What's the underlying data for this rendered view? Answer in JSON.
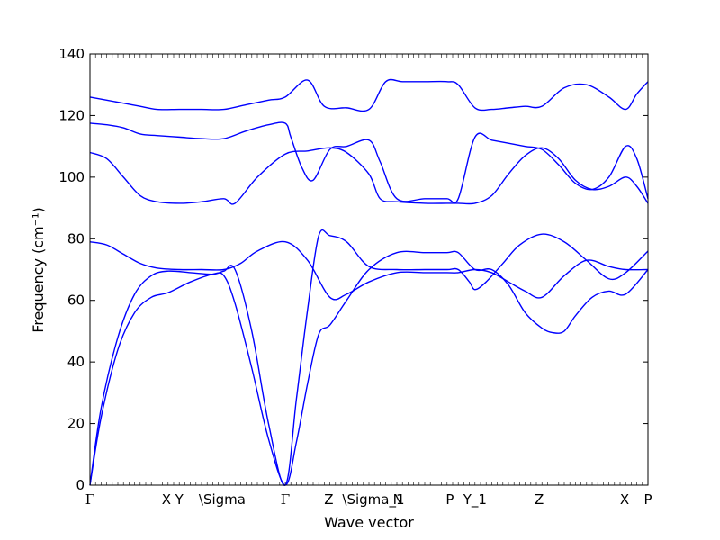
{
  "chart_data": {
    "type": "line",
    "title": "",
    "xlabel": "Wave vector",
    "ylabel": "Frequency (cm⁻¹)",
    "ylim": [
      0,
      140
    ],
    "yticks": [
      0,
      20,
      40,
      60,
      80,
      100,
      120,
      140
    ],
    "grid": false,
    "legend": "none",
    "color": "#0000ff",
    "xlim": [
      0,
      1
    ],
    "high_symmetry_points": [
      {
        "label": "Γ",
        "x": 0.0
      },
      {
        "label": "X",
        "x": 0.137
      },
      {
        "label": "Y",
        "x": 0.16
      },
      {
        "label": "\\Sigma",
        "x": 0.237
      },
      {
        "label": "Γ",
        "x": 0.35
      },
      {
        "label": "Z",
        "x": 0.428
      },
      {
        "label": "\\Sigma_1",
        "x": 0.508
      },
      {
        "label": "N",
        "x": 0.552
      },
      {
        "label": "P",
        "x": 0.645
      },
      {
        "label": "Y_1",
        "x": 0.69
      },
      {
        "label": "Z",
        "x": 0.805
      },
      {
        "label": "X",
        "x": 0.958
      },
      {
        "label": "P",
        "x": 1.0
      }
    ],
    "series": [
      {
        "x": [
          0,
          0.03,
          0.06,
          0.09,
          0.12,
          0.16,
          0.2,
          0.24,
          0.28,
          0.32,
          0.35,
          0.39,
          0.42,
          0.46,
          0.5,
          0.53,
          0.56,
          0.6,
          0.64,
          0.66,
          0.69,
          0.72,
          0.75,
          0.78,
          0.81,
          0.85,
          0.89,
          0.93,
          0.96,
          0.98,
          1.0
        ],
        "y": [
          126,
          125,
          124,
          123,
          122,
          122,
          122,
          122,
          123.5,
          125,
          126,
          131.5,
          123,
          122.5,
          122,
          131,
          131,
          131,
          131,
          130,
          122.5,
          122,
          122.5,
          123,
          123,
          129,
          130,
          126,
          122,
          127,
          131
        ]
      },
      {
        "x": [
          0,
          0.03,
          0.06,
          0.09,
          0.12,
          0.16,
          0.2,
          0.24,
          0.28,
          0.32,
          0.35,
          0.36,
          0.38,
          0.4,
          0.43,
          0.46,
          0.5,
          0.52,
          0.55,
          0.6,
          0.64,
          0.66,
          0.69,
          0.72,
          0.75,
          0.78,
          0.81,
          0.84,
          0.87,
          0.9,
          0.93,
          0.96,
          0.98,
          1.0
        ],
        "y": [
          117.5,
          117,
          116,
          114,
          113.5,
          113,
          112.5,
          112.5,
          115,
          117,
          117.5,
          113,
          103,
          99,
          109,
          110,
          112,
          105,
          93,
          93,
          93,
          93,
          113,
          112,
          111,
          110,
          109,
          104,
          98,
          96,
          100,
          110,
          106,
          93
        ]
      },
      {
        "x": [
          0,
          0.03,
          0.06,
          0.09,
          0.12,
          0.16,
          0.2,
          0.24,
          0.26,
          0.3,
          0.35,
          0.39,
          0.43,
          0.46,
          0.5,
          0.52,
          0.55,
          0.6,
          0.64,
          0.66,
          0.69,
          0.72,
          0.75,
          0.78,
          0.81,
          0.84,
          0.87,
          0.9,
          0.93,
          0.96,
          0.98,
          1.0
        ],
        "y": [
          108,
          106,
          100,
          94,
          92,
          91.5,
          92,
          93,
          91.5,
          100,
          107.5,
          108.5,
          109.5,
          108,
          101,
          93,
          92,
          91.5,
          91.5,
          91.5,
          91.5,
          94,
          101,
          107,
          109.5,
          106,
          99,
          96,
          97,
          100,
          97,
          91.5
        ]
      },
      {
        "x": [
          0,
          0.03,
          0.06,
          0.09,
          0.12,
          0.16,
          0.2,
          0.24,
          0.27,
          0.3,
          0.35,
          0.39,
          0.43,
          0.46,
          0.5,
          0.55,
          0.6,
          0.64,
          0.66,
          0.69,
          0.72,
          0.75,
          0.78,
          0.81,
          0.85,
          0.89,
          0.93,
          0.96,
          1.0
        ],
        "y": [
          79,
          78,
          75,
          72,
          70.5,
          70,
          70,
          70,
          72,
          76,
          79,
          73,
          61,
          62,
          66,
          69,
          69,
          69,
          69,
          70,
          69,
          66,
          63,
          61,
          68,
          73,
          71,
          70,
          70
        ]
      },
      {
        "x": [
          0,
          0.02,
          0.05,
          0.08,
          0.11,
          0.14,
          0.18,
          0.22,
          0.24,
          0.26,
          0.29,
          0.32,
          0.35,
          0.37,
          0.39,
          0.41,
          0.43,
          0.46,
          0.5,
          0.55,
          0.6,
          0.64,
          0.66,
          0.68,
          0.69,
          0.71,
          0.74,
          0.77,
          0.81,
          0.85,
          0.89,
          0.93,
          0.96,
          1.0
        ],
        "y": [
          0,
          25,
          48,
          62,
          68,
          69.5,
          69,
          68.5,
          69.5,
          70,
          50,
          20,
          0,
          28,
          57,
          81,
          81,
          79,
          71,
          70,
          70,
          70,
          70,
          66,
          63.5,
          66,
          72,
          78,
          81.5,
          79,
          73,
          67,
          69,
          76
        ]
      },
      {
        "x": [
          0,
          0.02,
          0.05,
          0.08,
          0.11,
          0.14,
          0.18,
          0.22,
          0.24,
          0.26,
          0.29,
          0.32,
          0.35,
          0.37,
          0.39,
          0.41,
          0.43,
          0.46,
          0.5,
          0.55,
          0.6,
          0.64,
          0.66,
          0.69,
          0.72,
          0.75,
          0.78,
          0.81,
          0.83,
          0.85,
          0.87,
          0.9,
          0.93,
          0.96,
          1.0
        ],
        "y": [
          0,
          22,
          44,
          56,
          61,
          62.5,
          66,
          68.5,
          68,
          59,
          38,
          15,
          0,
          14,
          33,
          49,
          52,
          60,
          70,
          75.5,
          75.5,
          75.5,
          75.5,
          70,
          70,
          65,
          56,
          51,
          49.5,
          50,
          55,
          61,
          63,
          62,
          70
        ]
      }
    ]
  }
}
